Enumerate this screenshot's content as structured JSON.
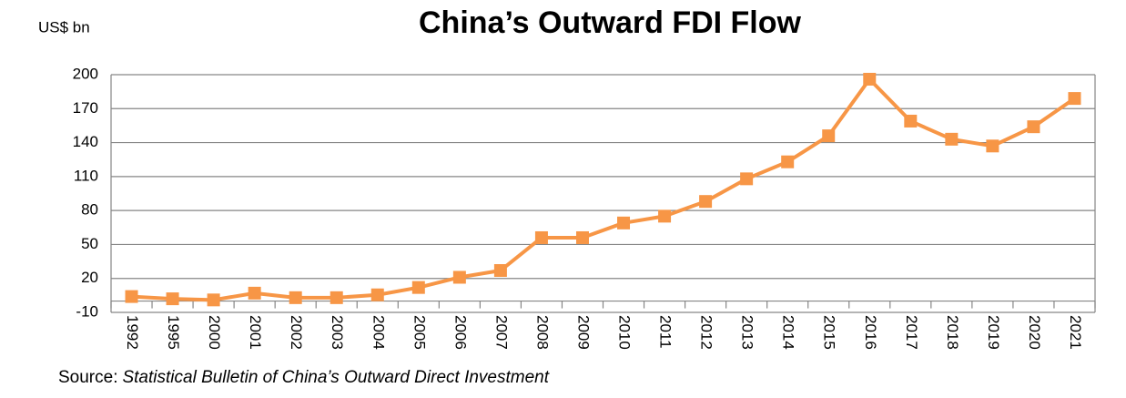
{
  "chart_data": {
    "type": "line",
    "title": "China’s Outward FDI Flow",
    "y_label": "US$ bn",
    "source_label": "Source:",
    "source_title": "Statistical Bulletin of China’s Outward Direct Investment",
    "categories": [
      "1992",
      "1995",
      "2000",
      "2001",
      "2002",
      "2003",
      "2004",
      "2005",
      "2006",
      "2007",
      "2008",
      "2009",
      "2010",
      "2011",
      "2012",
      "2013",
      "2014",
      "2015",
      "2016",
      "2017",
      "2018",
      "2019",
      "2020",
      "2021"
    ],
    "series": [
      {
        "name": "China’s Outward FDI Flow",
        "color": "#f79646",
        "values": [
          4,
          2,
          1,
          7,
          3,
          3,
          5.5,
          12,
          21,
          27,
          56,
          56,
          69,
          75,
          88,
          108,
          123,
          146,
          196,
          159,
          143,
          137,
          154,
          179
        ]
      }
    ],
    "ylim": [
      -10,
      200
    ],
    "yticks": [
      -10,
      20,
      50,
      80,
      110,
      140,
      170,
      200
    ],
    "grid": true
  }
}
